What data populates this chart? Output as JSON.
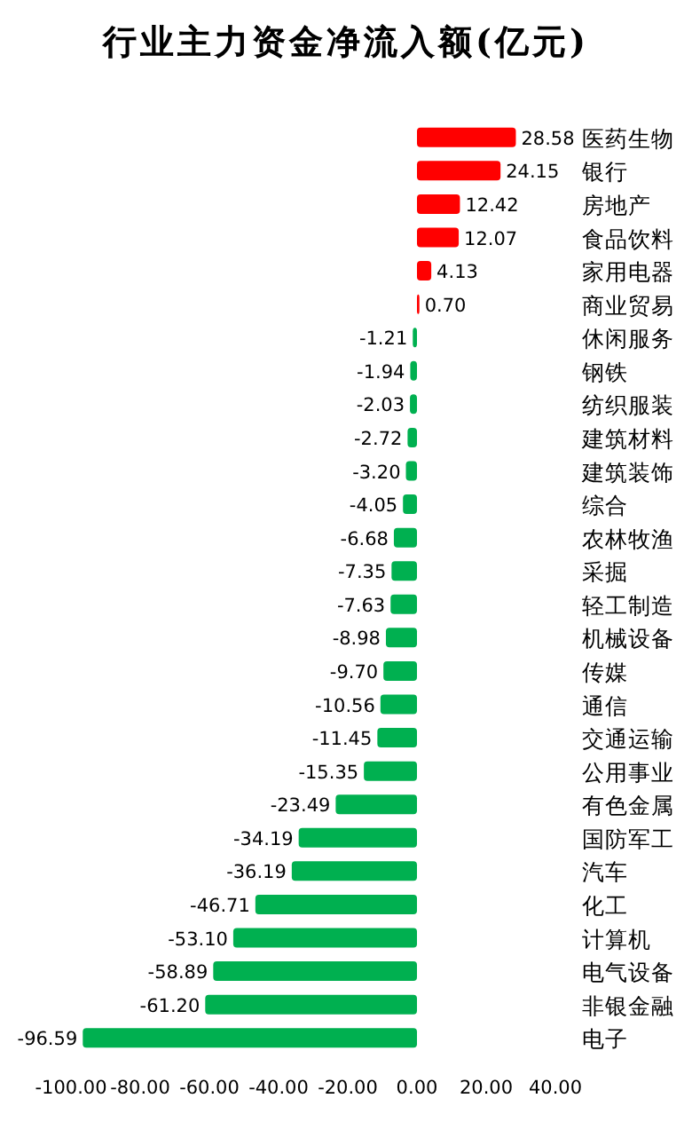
{
  "chart_data": {
    "type": "bar",
    "orientation": "horizontal",
    "title": "行业主力资金净流入额(亿元)",
    "categories": [
      "医药生物",
      "银行",
      "房地产",
      "食品饮料",
      "家用电器",
      "商业贸易",
      "休闲服务",
      "钢铁",
      "纺织服装",
      "建筑材料",
      "建筑装饰",
      "综合",
      "农林牧渔",
      "采掘",
      "轻工制造",
      "机械设备",
      "传媒",
      "通信",
      "交通运输",
      "公用事业",
      "有色金属",
      "国防军工",
      "汽车",
      "化工",
      "计算机",
      "电气设备",
      "非银金融",
      "电子"
    ],
    "values": [
      28.58,
      24.15,
      12.42,
      12.07,
      4.13,
      0.7,
      -1.21,
      -1.94,
      -2.03,
      -2.72,
      -3.2,
      -4.05,
      -6.68,
      -7.35,
      -7.63,
      -8.98,
      -9.7,
      -10.56,
      -11.45,
      -15.35,
      -23.49,
      -34.19,
      -36.19,
      -46.71,
      -53.1,
      -58.89,
      -61.2,
      -96.59
    ],
    "value_labels": [
      "28.58",
      "24.15",
      "12.42",
      "12.07",
      "4.13",
      "0.70",
      "-1.21",
      "-1.94",
      "-2.03",
      "-2.72",
      "-3.20",
      "-4.05",
      "-6.68",
      "-7.35",
      "-7.63",
      "-8.98",
      "-9.70",
      "-10.56",
      "-11.45",
      "-15.35",
      "-23.49",
      "-34.19",
      "-36.19",
      "-46.71",
      "-53.10",
      "-58.89",
      "-61.20",
      "-96.59"
    ],
    "colors": [
      "#ff0000",
      "#ff0000",
      "#ff0000",
      "#ff0000",
      "#ff0000",
      "#ff0000",
      "#00b050",
      "#00b050",
      "#00b050",
      "#00b050",
      "#00b050",
      "#00b050",
      "#00b050",
      "#00b050",
      "#00b050",
      "#00b050",
      "#00b050",
      "#00b050",
      "#00b050",
      "#00b050",
      "#00b050",
      "#00b050",
      "#00b050",
      "#00b050",
      "#00b050",
      "#00b050",
      "#00b050",
      "#00b050"
    ],
    "xlim": [
      -100,
      40
    ],
    "xticks": [
      {
        "value": -100,
        "label": "-100.00"
      },
      {
        "value": -80,
        "label": "-80.00"
      },
      {
        "value": -60,
        "label": "-60.00"
      },
      {
        "value": -40,
        "label": "-40.00"
      },
      {
        "value": -20,
        "label": "-20.00"
      },
      {
        "value": 0,
        "label": "0.00"
      },
      {
        "value": 20,
        "label": "20.00"
      },
      {
        "value": 40,
        "label": "40.00"
      }
    ]
  }
}
